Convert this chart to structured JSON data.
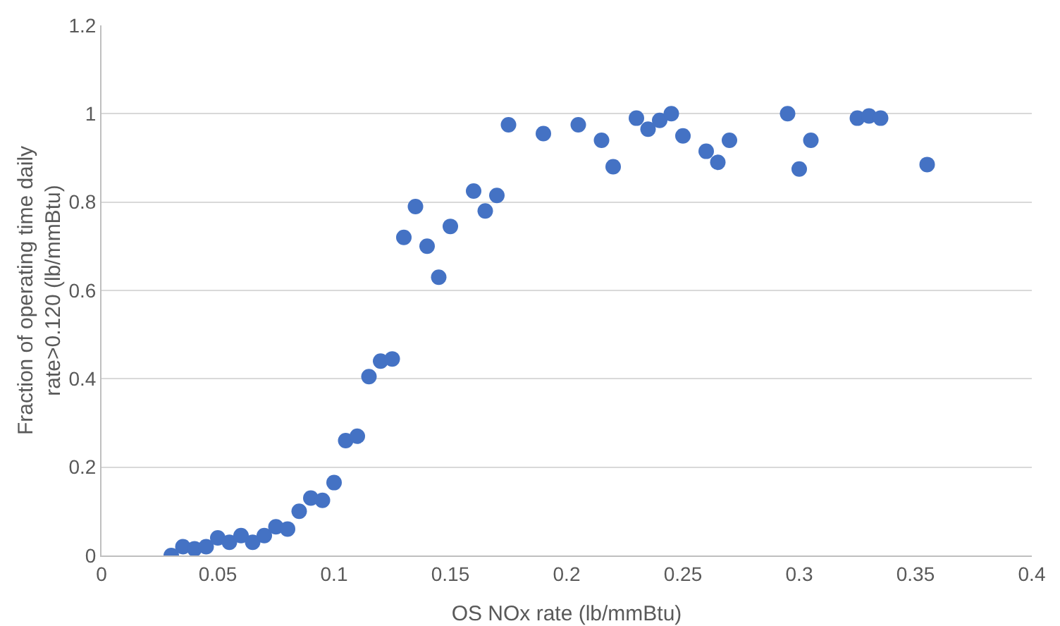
{
  "chart_data": {
    "type": "scatter",
    "xlabel": "OS NOx rate (lb/mmBtu)",
    "ylabel": "Fraction of operating time daily\nrate>0.120 (lb/mmBtu)",
    "x": [
      0.03,
      0.035,
      0.04,
      0.045,
      0.05,
      0.055,
      0.06,
      0.065,
      0.07,
      0.075,
      0.08,
      0.085,
      0.09,
      0.095,
      0.1,
      0.105,
      0.11,
      0.115,
      0.12,
      0.125,
      0.13,
      0.135,
      0.14,
      0.145,
      0.15,
      0.16,
      0.165,
      0.17,
      0.175,
      0.19,
      0.205,
      0.215,
      0.22,
      0.23,
      0.235,
      0.24,
      0.245,
      0.25,
      0.26,
      0.265,
      0.27,
      0.295,
      0.3,
      0.305,
      0.325,
      0.33,
      0.335,
      0.355
    ],
    "series": [
      {
        "color": "#4472c4",
        "values": [
          0.0,
          0.02,
          0.015,
          0.02,
          0.04,
          0.03,
          0.045,
          0.03,
          0.045,
          0.065,
          0.06,
          0.1,
          0.13,
          0.125,
          0.165,
          0.26,
          0.27,
          0.405,
          0.44,
          0.445,
          0.72,
          0.79,
          0.7,
          0.63,
          0.745,
          0.825,
          0.78,
          0.815,
          0.975,
          0.955,
          0.975,
          0.94,
          0.88,
          0.99,
          0.965,
          0.985,
          1.0,
          0.95,
          0.915,
          0.89,
          0.94,
          1.0,
          0.875,
          0.94,
          0.99,
          0.995,
          0.99,
          0.885
        ]
      }
    ],
    "xlim": [
      0,
      0.4
    ],
    "xticks": [
      0,
      {
        "value": 0.05,
        "label": "0.05"
      },
      {
        "value": 0.1,
        "label": "0.1"
      },
      {
        "value": 0.15,
        "label": "0.15"
      },
      {
        "value": 0.2,
        "label": "0.2"
      },
      {
        "value": 0.25,
        "label": "0.25"
      },
      {
        "value": 0.3,
        "label": "0.3"
      },
      {
        "value": 0.35,
        "label": "0.35"
      },
      {
        "value": 0.4,
        "label": "0.4"
      }
    ],
    "ylim": [
      0,
      1.2
    ],
    "yticks": [
      0,
      {
        "value": 0.2,
        "label": "0.2"
      },
      {
        "value": 0.4,
        "label": "0.4"
      },
      {
        "value": 0.6,
        "label": "0.6"
      },
      {
        "value": 0.8,
        "label": "0.8"
      },
      1,
      {
        "value": 1.2,
        "label": "1.2"
      }
    ],
    "grid": "y",
    "marker": "circle",
    "legend": false
  }
}
